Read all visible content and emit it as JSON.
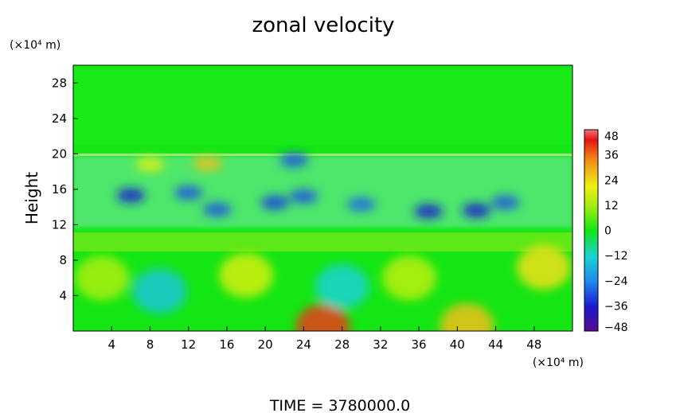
{
  "chart_data": {
    "type": "heatmap",
    "title": "zonal velocity",
    "ylabel": "Height",
    "y_unit": "(×10⁴ m)",
    "x_unit": "(×10⁴ m)",
    "footer": "TIME = 3780000.0",
    "xlim": [
      0,
      52
    ],
    "ylim": [
      0,
      30
    ],
    "x_ticks": [
      4,
      8,
      12,
      16,
      20,
      24,
      28,
      32,
      36,
      40,
      44,
      48
    ],
    "y_ticks": [
      4,
      8,
      12,
      16,
      20,
      24,
      28
    ],
    "colorbar": {
      "min": -48,
      "max": 48,
      "ticks": [
        48,
        36,
        24,
        12,
        0,
        -12,
        -24,
        -36,
        -48
      ]
    },
    "features": [
      {
        "x": 26,
        "y": 0.5,
        "value": 40
      },
      {
        "x": 41,
        "y": 0.6,
        "value": 30
      },
      {
        "x": 49,
        "y": 7.2,
        "value": 26
      },
      {
        "x": 18,
        "y": 6.3,
        "value": 20
      },
      {
        "x": 3,
        "y": 6.0,
        "value": 14
      },
      {
        "x": 35,
        "y": 6.0,
        "value": 16
      },
      {
        "x": 9,
        "y": 4.5,
        "value": -14
      },
      {
        "x": 28,
        "y": 5.0,
        "value": -12
      },
      {
        "x": 14,
        "y": 18.9,
        "value": 30
      },
      {
        "x": 8,
        "y": 18.8,
        "value": 22
      },
      {
        "x": 6,
        "y": 15.3,
        "value": -36
      },
      {
        "x": 12,
        "y": 15.6,
        "value": -30
      },
      {
        "x": 15,
        "y": 13.7,
        "value": -30
      },
      {
        "x": 21,
        "y": 14.5,
        "value": -32
      },
      {
        "x": 24,
        "y": 15.2,
        "value": -30
      },
      {
        "x": 30,
        "y": 14.3,
        "value": -28
      },
      {
        "x": 37,
        "y": 13.5,
        "value": -36
      },
      {
        "x": 42,
        "y": 13.6,
        "value": -36
      },
      {
        "x": 45,
        "y": 14.5,
        "value": -30
      },
      {
        "x": 23,
        "y": 19.3,
        "value": -30
      }
    ]
  }
}
